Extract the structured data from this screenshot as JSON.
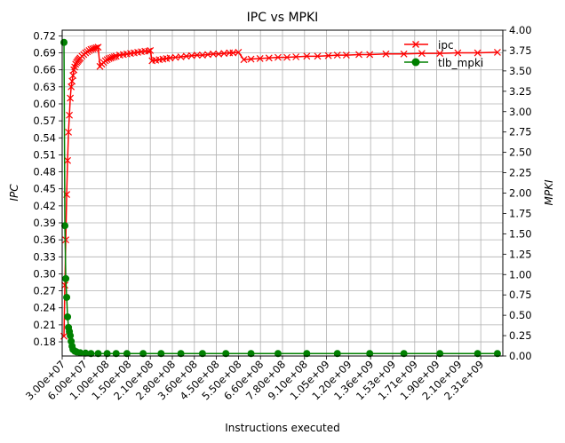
{
  "chart_data": {
    "type": "line",
    "title": "IPC vs MPKI",
    "xlabel": "Instructions executed",
    "ylabel_left": "IPC",
    "ylabel_right": "MPKI",
    "x_tick_labels": [
      "3.00e+07",
      "6.00e+07",
      "1.00e+08",
      "1.50e+08",
      "2.10e+08",
      "2.80e+08",
      "3.60e+08",
      "4.50e+08",
      "5.50e+08",
      "6.60e+08",
      "7.80e+08",
      "9.10e+08",
      "1.05e+09",
      "1.20e+09",
      "1.36e+09",
      "1.53e+09",
      "1.71e+09",
      "1.90e+09",
      "2.10e+09",
      "2.31e+09"
    ],
    "y_left_ticks": [
      "0.18",
      "0.21",
      "0.24",
      "0.27",
      "0.30",
      "0.33",
      "0.36",
      "0.39",
      "0.42",
      "0.45",
      "0.48",
      "0.51",
      "0.54",
      "0.57",
      "0.60",
      "0.63",
      "0.66",
      "0.69",
      "0.72"
    ],
    "y_left_range": [
      0.155,
      0.73
    ],
    "y_right_ticks": [
      "0.00",
      "0.25",
      "0.50",
      "0.75",
      "1.00",
      "1.25",
      "1.50",
      "1.75",
      "2.00",
      "2.25",
      "2.50",
      "2.75",
      "3.00",
      "3.25",
      "3.50",
      "3.75",
      "4.00"
    ],
    "y_right_range": [
      0.0,
      4.0
    ],
    "x_range": [
      0,
      2450000000.0
    ],
    "grid": true,
    "legend_position": "top-right",
    "series": [
      {
        "name": "ipc",
        "axis": "left",
        "color": "#ff0000",
        "marker": "x",
        "x": [
          10000000.0,
          15000000.0,
          20000000.0,
          25000000.0,
          30000000.0,
          35000000.0,
          40000000.0,
          45000000.0,
          50000000.0,
          55000000.0,
          60000000.0,
          65000000.0,
          70000000.0,
          75000000.0,
          80000000.0,
          85000000.0,
          90000000.0,
          95000000.0,
          100000000.0,
          110000000.0,
          120000000.0,
          130000000.0,
          140000000.0,
          150000000.0,
          160000000.0,
          170000000.0,
          180000000.0,
          190000000.0,
          200000000.0,
          210000000.0,
          220000000.0,
          230000000.0,
          240000000.0,
          250000000.0,
          260000000.0,
          270000000.0,
          280000000.0,
          290000000.0,
          300000000.0,
          320000000.0,
          340000000.0,
          360000000.0,
          380000000.0,
          400000000.0,
          420000000.0,
          440000000.0,
          460000000.0,
          480000000.0,
          490000000.0,
          500000000.0,
          520000000.0,
          540000000.0,
          560000000.0,
          580000000.0,
          600000000.0,
          630000000.0,
          660000000.0,
          690000000.0,
          720000000.0,
          750000000.0,
          780000000.0,
          810000000.0,
          840000000.0,
          870000000.0,
          900000000.0,
          930000000.0,
          950000000.0,
          980000000.0,
          1010000000.0,
          1050000000.0,
          1100000000.0,
          1150000000.0,
          1200000000.0,
          1250000000.0,
          1300000000.0,
          1360000000.0,
          1420000000.0,
          1480000000.0,
          1530000000.0,
          1580000000.0,
          1650000000.0,
          1710000000.0,
          1800000000.0,
          1900000000.0,
          2000000000.0,
          2100000000.0,
          2200000000.0,
          2310000000.0,
          2420000000.0
        ],
        "values": [
          0.19,
          0.28,
          0.36,
          0.44,
          0.5,
          0.55,
          0.58,
          0.61,
          0.63,
          0.64,
          0.65,
          0.66,
          0.665,
          0.67,
          0.673,
          0.675,
          0.677,
          0.679,
          0.681,
          0.684,
          0.687,
          0.69,
          0.692,
          0.694,
          0.696,
          0.697,
          0.698,
          0.699,
          0.7,
          0.666,
          0.67,
          0.673,
          0.676,
          0.678,
          0.68,
          0.681,
          0.682,
          0.683,
          0.684,
          0.686,
          0.687,
          0.688,
          0.689,
          0.69,
          0.691,
          0.692,
          0.693,
          0.693,
          0.694,
          0.676,
          0.677,
          0.678,
          0.679,
          0.68,
          0.681,
          0.682,
          0.683,
          0.684,
          0.685,
          0.686,
          0.686,
          0.687,
          0.688,
          0.688,
          0.689,
          0.69,
          0.69,
          0.691,
          0.678,
          0.679,
          0.68,
          0.681,
          0.682,
          0.682,
          0.683,
          0.684,
          0.684,
          0.685,
          0.686,
          0.686,
          0.687,
          0.687,
          0.688,
          0.688,
          0.689,
          0.689,
          0.69,
          0.69,
          0.691
        ]
      },
      {
        "name": "tlb_mpki",
        "axis": "right",
        "color": "#008000",
        "marker": "o",
        "x": [
          10000000.0,
          15000000.0,
          20000000.0,
          25000000.0,
          30000000.0,
          35000000.0,
          40000000.0,
          45000000.0,
          50000000.0,
          55000000.0,
          60000000.0,
          70000000.0,
          80000000.0,
          100000000.0,
          130000000.0,
          160000000.0,
          200000000.0,
          250000000.0,
          300000000.0,
          360000000.0,
          450000000.0,
          550000000.0,
          660000000.0,
          780000000.0,
          910000000.0,
          1050000000.0,
          1200000000.0,
          1360000000.0,
          1530000000.0,
          1710000000.0,
          1900000000.0,
          2100000000.0,
          2310000000.0,
          2420000000.0
        ],
        "values": [
          3.85,
          1.6,
          0.95,
          0.72,
          0.48,
          0.35,
          0.3,
          0.25,
          0.18,
          0.12,
          0.08,
          0.06,
          0.05,
          0.04,
          0.035,
          0.03,
          0.03,
          0.03,
          0.03,
          0.03,
          0.03,
          0.03,
          0.03,
          0.03,
          0.03,
          0.03,
          0.03,
          0.03,
          0.03,
          0.03,
          0.03,
          0.03,
          0.03,
          0.03
        ]
      }
    ]
  }
}
